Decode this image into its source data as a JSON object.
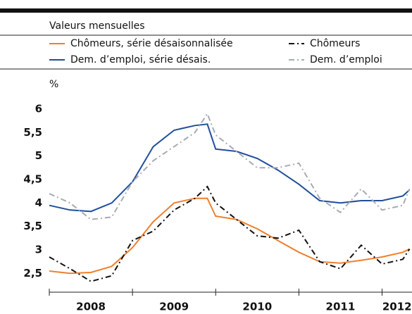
{
  "chart_data": {
    "type": "line",
    "subtitle": "Valeurs mensuelles",
    "y_label": "%",
    "x": [
      2008.0,
      2008.25,
      2008.5,
      2008.75,
      2009.0,
      2009.25,
      2009.5,
      2009.75,
      2009.9,
      2010.0,
      2010.25,
      2010.5,
      2010.75,
      2011.0,
      2011.25,
      2011.5,
      2011.75,
      2012.0,
      2012.25,
      2012.33
    ],
    "series": [
      {
        "name": "Chômeurs, série désaisonnalisée",
        "color": "#f07f2e",
        "dash": "solid",
        "values": [
          2.55,
          2.5,
          2.52,
          2.65,
          3.05,
          3.6,
          4.0,
          4.1,
          4.1,
          3.72,
          3.65,
          3.45,
          3.2,
          2.95,
          2.75,
          2.72,
          2.78,
          2.85,
          2.95,
          3.02
        ]
      },
      {
        "name": "Chômeurs",
        "color": "#111111",
        "dash": "dashdot",
        "values": [
          2.85,
          2.6,
          2.33,
          2.45,
          3.2,
          3.4,
          3.85,
          4.1,
          4.35,
          4.0,
          3.65,
          3.3,
          3.25,
          3.42,
          2.75,
          2.6,
          3.1,
          2.7,
          2.8,
          3.02
        ]
      },
      {
        "name": "Dem. d’emploi, série désais.",
        "color": "#1f4e9c",
        "dash": "solid",
        "values": [
          3.95,
          3.85,
          3.82,
          4.0,
          4.45,
          5.2,
          5.55,
          5.65,
          5.68,
          5.15,
          5.1,
          4.95,
          4.7,
          4.4,
          4.05,
          4.0,
          4.05,
          4.05,
          4.15,
          4.28
        ]
      },
      {
        "name": "Dem. d’emploi",
        "color": "#a6abb3",
        "dash": "dashdot",
        "values": [
          4.2,
          4.0,
          3.65,
          3.7,
          4.45,
          4.9,
          5.2,
          5.5,
          5.9,
          5.45,
          5.1,
          4.75,
          4.75,
          4.85,
          4.1,
          3.8,
          4.3,
          3.85,
          3.95,
          4.3
        ]
      }
    ],
    "xlim": [
      2008.0,
      2012.36
    ],
    "xticks": [
      2008,
      2009,
      2010,
      2011,
      2012
    ],
    "ylim": [
      2.25,
      6.3
    ],
    "yticks": [
      {
        "value": 2.5,
        "label": "2,5"
      },
      3,
      {
        "value": 3.5,
        "label": "3,5"
      },
      4,
      {
        "value": 4.5,
        "label": "4,5"
      },
      5,
      {
        "value": 5.5,
        "label": "5,5"
      },
      6
    ],
    "grid": false
  }
}
